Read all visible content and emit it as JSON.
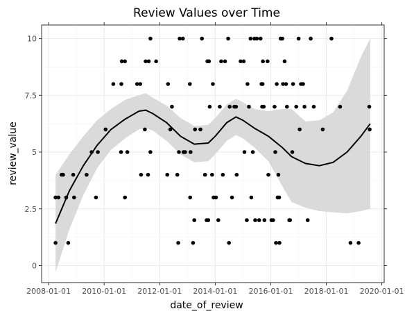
{
  "chart_data": {
    "type": "scatter",
    "title": "Review Values over Time",
    "xlabel": "date_of_review",
    "ylabel": "review_value",
    "x_axis": {
      "scale": "date",
      "range": [
        "2007-10-01",
        "2020-02-01"
      ],
      "ticks": [
        "2008-01-01",
        "2010-01-01",
        "2012-01-01",
        "2014-01-01",
        "2016-01-01",
        "2018-01-01",
        "2020-01-01"
      ]
    },
    "y_axis": {
      "range": [
        -0.75,
        10.6
      ],
      "ticks": [
        0,
        2.5,
        5,
        7.5,
        10
      ],
      "tick_labels": [
        "0",
        "2.5",
        "5",
        "7.5",
        "10"
      ]
    },
    "grid": true,
    "colors": {
      "points": "#000000",
      "smooth_line": "#000000",
      "ribbon": "#d3d3d3",
      "panel_border": "#333333",
      "grid": "#ebebeb"
    },
    "points": [
      {
        "x": "2008-04-01",
        "y": 3
      },
      {
        "x": "2008-04-01",
        "y": 1
      },
      {
        "x": "2008-05-10",
        "y": 3
      },
      {
        "x": "2008-06-20",
        "y": 4
      },
      {
        "x": "2008-07-10",
        "y": 4
      },
      {
        "x": "2008-08-20",
        "y": 3
      },
      {
        "x": "2008-09-15",
        "y": 1
      },
      {
        "x": "2008-11-20",
        "y": 4
      },
      {
        "x": "2008-12-01",
        "y": 3
      },
      {
        "x": "2009-05-15",
        "y": 4
      },
      {
        "x": "2009-07-20",
        "y": 5
      },
      {
        "x": "2009-09-15",
        "y": 3
      },
      {
        "x": "2009-10-10",
        "y": 5
      },
      {
        "x": "2010-01-20",
        "y": 6
      },
      {
        "x": "2010-05-01",
        "y": 8
      },
      {
        "x": "2010-08-10",
        "y": 5
      },
      {
        "x": "2010-08-15",
        "y": 8
      },
      {
        "x": "2010-08-20",
        "y": 9
      },
      {
        "x": "2010-10-01",
        "y": 9
      },
      {
        "x": "2010-10-01",
        "y": 3
      },
      {
        "x": "2010-11-01",
        "y": 5
      },
      {
        "x": "2011-03-10",
        "y": 8
      },
      {
        "x": "2011-04-20",
        "y": 8
      },
      {
        "x": "2011-05-01",
        "y": 4
      },
      {
        "x": "2011-06-20",
        "y": 6
      },
      {
        "x": "2011-07-01",
        "y": 9
      },
      {
        "x": "2011-08-01",
        "y": 4
      },
      {
        "x": "2011-08-10",
        "y": 9
      },
      {
        "x": "2011-09-01",
        "y": 10
      },
      {
        "x": "2011-09-01",
        "y": 5
      },
      {
        "x": "2011-11-15",
        "y": 9
      },
      {
        "x": "2012-04-10",
        "y": 4
      },
      {
        "x": "2012-04-20",
        "y": 8
      },
      {
        "x": "2012-05-20",
        "y": 6
      },
      {
        "x": "2012-06-10",
        "y": 7
      },
      {
        "x": "2012-08-20",
        "y": 4
      },
      {
        "x": "2012-09-01",
        "y": 1
      },
      {
        "x": "2012-09-10",
        "y": 5
      },
      {
        "x": "2012-09-20",
        "y": 10
      },
      {
        "x": "2012-11-01",
        "y": 10
      },
      {
        "x": "2012-11-10",
        "y": 5
      },
      {
        "x": "2012-12-01",
        "y": 5
      },
      {
        "x": "2013-02-01",
        "y": 8
      },
      {
        "x": "2013-02-05",
        "y": 3
      },
      {
        "x": "2013-02-10",
        "y": 5
      },
      {
        "x": "2013-03-15",
        "y": 1
      },
      {
        "x": "2013-04-01",
        "y": 2
      },
      {
        "x": "2013-04-10",
        "y": 6
      },
      {
        "x": "2013-06-20",
        "y": 6
      },
      {
        "x": "2013-07-10",
        "y": 10
      },
      {
        "x": "2013-08-20",
        "y": 4
      },
      {
        "x": "2013-09-10",
        "y": 2
      },
      {
        "x": "2013-09-20",
        "y": 9
      },
      {
        "x": "2013-10-01",
        "y": 2
      },
      {
        "x": "2013-10-10",
        "y": 9
      },
      {
        "x": "2013-10-20",
        "y": 7
      },
      {
        "x": "2013-11-20",
        "y": 4
      },
      {
        "x": "2013-12-01",
        "y": 8
      },
      {
        "x": "2013-12-10",
        "y": 3
      },
      {
        "x": "2014-01-10",
        "y": 3
      },
      {
        "x": "2014-02-10",
        "y": 2
      },
      {
        "x": "2014-03-01",
        "y": 7
      },
      {
        "x": "2014-03-20",
        "y": 9
      },
      {
        "x": "2014-04-10",
        "y": 4
      },
      {
        "x": "2014-05-10",
        "y": 9
      },
      {
        "x": "2014-06-20",
        "y": 10
      },
      {
        "x": "2014-07-01",
        "y": 1
      },
      {
        "x": "2014-07-10",
        "y": 7
      },
      {
        "x": "2014-08-10",
        "y": 3
      },
      {
        "x": "2014-09-10",
        "y": 7
      },
      {
        "x": "2014-10-01",
        "y": 7
      },
      {
        "x": "2014-10-10",
        "y": 4
      },
      {
        "x": "2014-12-01",
        "y": 9
      },
      {
        "x": "2015-01-10",
        "y": 9
      },
      {
        "x": "2015-01-20",
        "y": 5
      },
      {
        "x": "2015-02-20",
        "y": 2
      },
      {
        "x": "2015-03-01",
        "y": 8
      },
      {
        "x": "2015-03-20",
        "y": 7
      },
      {
        "x": "2015-04-10",
        "y": 10
      },
      {
        "x": "2015-04-20",
        "y": 3
      },
      {
        "x": "2015-05-10",
        "y": 5
      },
      {
        "x": "2015-06-01",
        "y": 10
      },
      {
        "x": "2015-06-10",
        "y": 2
      },
      {
        "x": "2015-07-01",
        "y": 10
      },
      {
        "x": "2015-08-01",
        "y": 2
      },
      {
        "x": "2015-08-20",
        "y": 10
      },
      {
        "x": "2015-09-01",
        "y": 8
      },
      {
        "x": "2015-09-10",
        "y": 7
      },
      {
        "x": "2015-09-15",
        "y": 8
      },
      {
        "x": "2015-09-20",
        "y": 9
      },
      {
        "x": "2015-10-01",
        "y": 7
      },
      {
        "x": "2015-10-10",
        "y": 2
      },
      {
        "x": "2015-11-20",
        "y": 9
      },
      {
        "x": "2015-12-01",
        "y": 4
      },
      {
        "x": "2016-01-10",
        "y": 2
      },
      {
        "x": "2016-02-01",
        "y": 2
      },
      {
        "x": "2016-02-20",
        "y": 7
      },
      {
        "x": "2016-03-01",
        "y": 5
      },
      {
        "x": "2016-03-10",
        "y": 1
      },
      {
        "x": "2016-03-20",
        "y": 8
      },
      {
        "x": "2016-04-01",
        "y": 3
      },
      {
        "x": "2016-04-10",
        "y": 4
      },
      {
        "x": "2016-04-20",
        "y": 3
      },
      {
        "x": "2016-04-25",
        "y": 1
      },
      {
        "x": "2016-05-10",
        "y": 10
      },
      {
        "x": "2016-06-01",
        "y": 10
      },
      {
        "x": "2016-06-10",
        "y": 8
      },
      {
        "x": "2016-07-01",
        "y": 9
      },
      {
        "x": "2016-07-20",
        "y": 8
      },
      {
        "x": "2016-08-01",
        "y": 7
      },
      {
        "x": "2016-09-01",
        "y": 2
      },
      {
        "x": "2016-09-10",
        "y": 2
      },
      {
        "x": "2016-10-10",
        "y": 5
      },
      {
        "x": "2016-10-20",
        "y": 8
      },
      {
        "x": "2016-12-01",
        "y": 7
      },
      {
        "x": "2017-01-01",
        "y": 10
      },
      {
        "x": "2017-01-15",
        "y": 6
      },
      {
        "x": "2017-02-01",
        "y": 8
      },
      {
        "x": "2017-03-01",
        "y": 8
      },
      {
        "x": "2017-03-20",
        "y": 7
      },
      {
        "x": "2017-05-01",
        "y": 2
      },
      {
        "x": "2017-06-10",
        "y": 10
      },
      {
        "x": "2017-07-20",
        "y": 7
      },
      {
        "x": "2017-11-15",
        "y": 6
      },
      {
        "x": "2018-03-10",
        "y": 10
      },
      {
        "x": "2018-07-01",
        "y": 7
      },
      {
        "x": "2018-11-15",
        "y": 1
      },
      {
        "x": "2019-03-01",
        "y": 1
      },
      {
        "x": "2019-07-20",
        "y": 7
      },
      {
        "x": "2019-07-25",
        "y": 6
      }
    ],
    "smooth": [
      {
        "x": "2008-04-01",
        "y": 1.85
      },
      {
        "x": "2008-10-01",
        "y": 3.3
      },
      {
        "x": "2009-04-01",
        "y": 4.4
      },
      {
        "x": "2009-10-01",
        "y": 5.3
      },
      {
        "x": "2010-04-01",
        "y": 6.0
      },
      {
        "x": "2010-10-01",
        "y": 6.45
      },
      {
        "x": "2011-04-01",
        "y": 6.8
      },
      {
        "x": "2011-07-01",
        "y": 6.85
      },
      {
        "x": "2011-10-01",
        "y": 6.7
      },
      {
        "x": "2012-04-01",
        "y": 6.3
      },
      {
        "x": "2012-10-01",
        "y": 5.7
      },
      {
        "x": "2013-04-01",
        "y": 5.35
      },
      {
        "x": "2013-10-01",
        "y": 5.4
      },
      {
        "x": "2014-01-01",
        "y": 5.7
      },
      {
        "x": "2014-06-01",
        "y": 6.3
      },
      {
        "x": "2014-10-01",
        "y": 6.55
      },
      {
        "x": "2015-01-01",
        "y": 6.4
      },
      {
        "x": "2015-06-01",
        "y": 6.05
      },
      {
        "x": "2015-12-01",
        "y": 5.7
      },
      {
        "x": "2016-06-01",
        "y": 5.2
      },
      {
        "x": "2016-10-01",
        "y": 4.8
      },
      {
        "x": "2017-04-01",
        "y": 4.5
      },
      {
        "x": "2017-10-01",
        "y": 4.4
      },
      {
        "x": "2018-04-01",
        "y": 4.55
      },
      {
        "x": "2018-10-01",
        "y": 5.0
      },
      {
        "x": "2019-04-01",
        "y": 5.7
      },
      {
        "x": "2019-08-01",
        "y": 6.25
      }
    ],
    "ribbon": [
      {
        "x": "2008-04-01",
        "lo": -0.3,
        "hi": 4.0
      },
      {
        "x": "2008-10-01",
        "lo": 1.6,
        "hi": 4.9
      },
      {
        "x": "2009-04-01",
        "lo": 3.1,
        "hi": 5.7
      },
      {
        "x": "2009-10-01",
        "lo": 4.3,
        "hi": 6.4
      },
      {
        "x": "2010-04-01",
        "lo": 5.1,
        "hi": 6.9
      },
      {
        "x": "2010-10-01",
        "lo": 5.6,
        "hi": 7.3
      },
      {
        "x": "2011-04-01",
        "lo": 6.0,
        "hi": 7.5
      },
      {
        "x": "2011-07-01",
        "lo": 6.05,
        "hi": 7.6
      },
      {
        "x": "2011-10-01",
        "lo": 5.95,
        "hi": 7.4
      },
      {
        "x": "2012-04-01",
        "lo": 5.5,
        "hi": 7.05
      },
      {
        "x": "2012-10-01",
        "lo": 4.9,
        "hi": 6.5
      },
      {
        "x": "2013-04-01",
        "lo": 4.55,
        "hi": 6.15
      },
      {
        "x": "2013-10-01",
        "lo": 4.6,
        "hi": 6.2
      },
      {
        "x": "2014-01-01",
        "lo": 4.9,
        "hi": 6.5
      },
      {
        "x": "2014-06-01",
        "lo": 5.5,
        "hi": 7.1
      },
      {
        "x": "2014-10-01",
        "lo": 5.75,
        "hi": 7.35
      },
      {
        "x": "2015-01-01",
        "lo": 5.6,
        "hi": 7.2
      },
      {
        "x": "2015-06-01",
        "lo": 5.2,
        "hi": 6.9
      },
      {
        "x": "2015-12-01",
        "lo": 4.6,
        "hi": 6.8
      },
      {
        "x": "2016-06-01",
        "lo": 3.5,
        "hi": 6.9
      },
      {
        "x": "2016-10-01",
        "lo": 2.8,
        "hi": 6.9
      },
      {
        "x": "2017-04-01",
        "lo": 2.55,
        "hi": 6.35
      },
      {
        "x": "2017-10-01",
        "lo": 2.4,
        "hi": 6.4
      },
      {
        "x": "2018-04-01",
        "lo": 2.35,
        "hi": 6.75
      },
      {
        "x": "2018-10-01",
        "lo": 2.3,
        "hi": 7.7
      },
      {
        "x": "2019-04-01",
        "lo": 2.4,
        "hi": 9.2
      },
      {
        "x": "2019-08-01",
        "lo": 2.5,
        "hi": 10.0
      }
    ]
  }
}
